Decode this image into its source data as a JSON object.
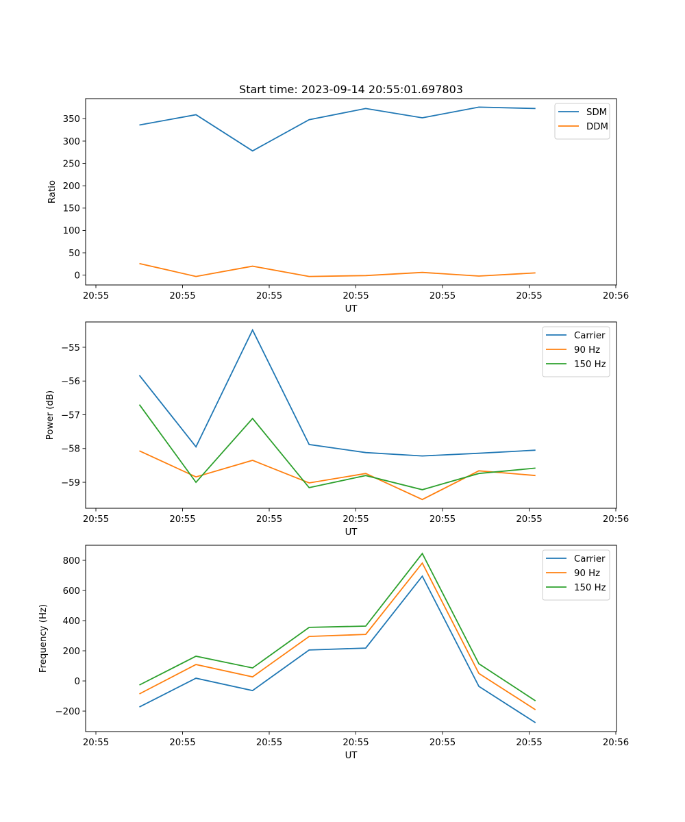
{
  "figure": {
    "title": "Start time: 2023-09-14 20:55:01.697803"
  },
  "chart_data": [
    {
      "type": "line",
      "title": "Start time: 2023-09-14 20:55:01.697803",
      "xlabel": "UT",
      "ylabel": "Ratio",
      "x_tick_labels": [
        "20:55",
        "20:55",
        "20:55",
        "20:55",
        "20:55",
        "20:55",
        "20:56"
      ],
      "y_ticks": [
        0,
        50,
        100,
        150,
        200,
        250,
        300,
        350
      ],
      "y_tick_labels": [
        "0",
        "50",
        "100",
        "150",
        "200",
        "250",
        "300",
        "350"
      ],
      "ylim": [
        -22,
        395
      ],
      "legend_position": "top-right",
      "grid": false,
      "series": [
        {
          "name": "SDM",
          "color": "#1f77b4",
          "values": [
            336,
            359,
            278,
            348,
            373,
            352,
            376,
            373
          ]
        },
        {
          "name": "DDM",
          "color": "#ff7f0e",
          "values": [
            26,
            -3,
            20,
            -3,
            -1,
            6,
            -2,
            5
          ]
        }
      ]
    },
    {
      "type": "line",
      "title": "",
      "xlabel": "UT",
      "ylabel": "Power (dB)",
      "x_tick_labels": [
        "20:55",
        "20:55",
        "20:55",
        "20:55",
        "20:55",
        "20:55",
        "20:56"
      ],
      "y_ticks": [
        -59,
        -58,
        -57,
        -56,
        -55
      ],
      "y_tick_labels": [
        "−59",
        "−58",
        "−57",
        "−56",
        "−55"
      ],
      "ylim": [
        -59.77,
        -54.25
      ],
      "legend_position": "top-right",
      "grid": false,
      "series": [
        {
          "name": "Carrier",
          "color": "#1f77b4",
          "values": [
            -55.83,
            -57.95,
            -54.49,
            -57.88,
            -58.12,
            -58.22,
            -58.14,
            -58.05
          ]
        },
        {
          "name": "90 Hz",
          "color": "#ff7f0e",
          "values": [
            -58.07,
            -58.84,
            -58.35,
            -59.02,
            -58.74,
            -59.51,
            -58.66,
            -58.8
          ]
        },
        {
          "name": "150 Hz",
          "color": "#2ca02c",
          "values": [
            -56.7,
            -59.0,
            -57.11,
            -59.16,
            -58.8,
            -59.22,
            -58.74,
            -58.58
          ]
        }
      ]
    },
    {
      "type": "line",
      "title": "",
      "xlabel": "UT",
      "ylabel": "Frequency (Hz)",
      "x_tick_labels": [
        "20:55",
        "20:55",
        "20:55",
        "20:55",
        "20:55",
        "20:55",
        "20:56"
      ],
      "y_ticks": [
        -200,
        0,
        200,
        400,
        600,
        800
      ],
      "y_tick_labels": [
        "−200",
        "0",
        "200",
        "400",
        "600",
        "800"
      ],
      "ylim": [
        -336,
        900
      ],
      "legend_position": "top-right",
      "grid": false,
      "series": [
        {
          "name": "Carrier",
          "color": "#1f77b4",
          "values": [
            -173,
            18,
            -64,
            205,
            218,
            695,
            -36,
            -277
          ]
        },
        {
          "name": "90 Hz",
          "color": "#ff7f0e",
          "values": [
            -86,
            109,
            27,
            295,
            309,
            782,
            50,
            -191
          ]
        },
        {
          "name": "150 Hz",
          "color": "#2ca02c",
          "values": [
            -27,
            164,
            86,
            355,
            364,
            845,
            114,
            -132
          ]
        }
      ]
    }
  ]
}
